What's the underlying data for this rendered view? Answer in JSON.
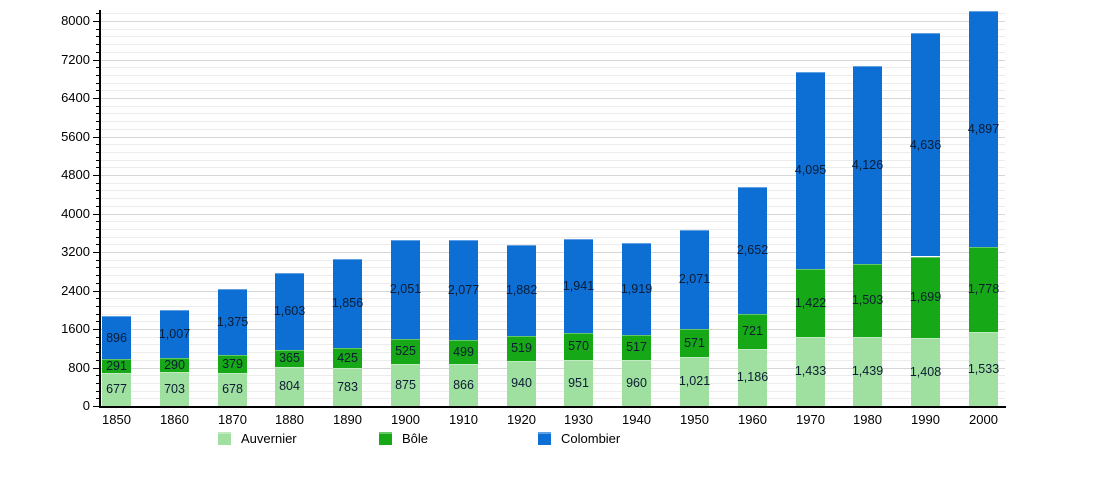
{
  "chart_data": {
    "type": "bar",
    "stacked": true,
    "title": "",
    "xlabel": "",
    "ylabel": "",
    "categories": [
      "1850",
      "1860",
      "1870",
      "1880",
      "1890",
      "1900",
      "1910",
      "1920",
      "1930",
      "1940",
      "1950",
      "1960",
      "1970",
      "1980",
      "1990",
      "2000"
    ],
    "series": [
      {
        "name": "Auvernier",
        "color": "#9fdf9f",
        "values": [
          677,
          703,
          678,
          804,
          783,
          875,
          866,
          940,
          951,
          960,
          1021,
          1186,
          1433,
          1439,
          1408,
          1533
        ]
      },
      {
        "name": "Bôle",
        "color": "#16a816",
        "values": [
          291,
          290,
          379,
          365,
          425,
          525,
          499,
          519,
          570,
          517,
          571,
          721,
          1422,
          1503,
          1699,
          1778
        ]
      },
      {
        "name": "Colombier",
        "color": "#0d6ed4",
        "values": [
          896,
          1007,
          1375,
          1603,
          1856,
          2051,
          2077,
          1882,
          1941,
          1919,
          2071,
          2652,
          4095,
          4126,
          4636,
          4897
        ]
      }
    ],
    "ylim": [
      0,
      8270
    ],
    "ytick_interval": 800,
    "yminor_interval": 160,
    "ytick_labels": [
      "0",
      "800",
      "1600",
      "2400",
      "3200",
      "4000",
      "4800",
      "5600",
      "6400",
      "7200",
      "8000"
    ],
    "grid": true,
    "legend_position": "bottom",
    "value_labels_shown": true,
    "colors": {
      "axis": "#000000",
      "major_grid": "#d6d6d6",
      "minor_grid": "#ececec",
      "value_label": "#0b1c33"
    }
  }
}
